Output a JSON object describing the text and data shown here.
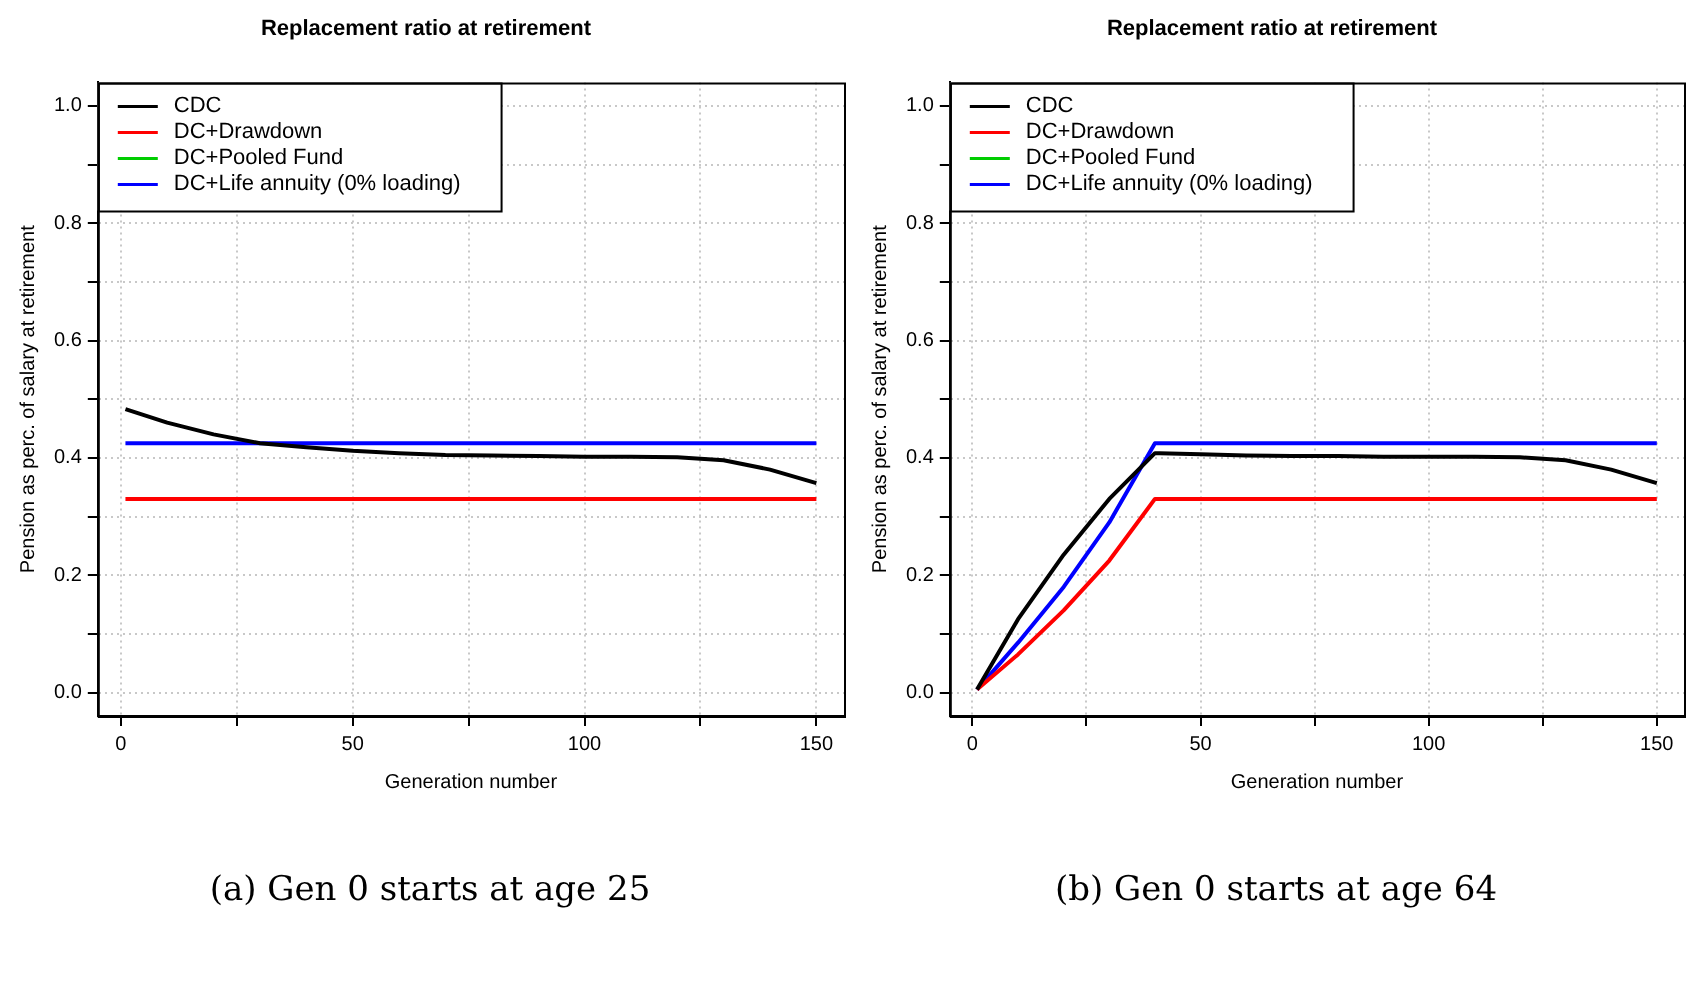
{
  "chart_data": [
    {
      "type": "line",
      "title": "Replacement ratio at retirement",
      "xlabel": "Generation number",
      "ylabel": "Pension as perc. of salary at retirement",
      "xlim": [
        -4.96,
        155.96
      ],
      "xticks": [
        0,
        {
          "value": 25,
          "label": null
        },
        50,
        {
          "value": 75,
          "label": null
        },
        100,
        {
          "value": 125,
          "label": null
        },
        150
      ],
      "ylim": [
        -0.04,
        1.04
      ],
      "yticks": [
        "0.0",
        {
          "value": 0.1,
          "label": null
        },
        0.2,
        {
          "value": 0.3,
          "label": null
        },
        0.4,
        {
          "value": 0.5,
          "label": null
        },
        0.6,
        {
          "value": 0.7,
          "label": null
        },
        0.8,
        {
          "value": 0.9,
          "label": null
        },
        {
          "value": 1,
          "label": "1.0"
        }
      ],
      "grid": true,
      "legend": "top left",
      "marker": "none",
      "line_style": "solid",
      "annotations": [
        "(a) Gen 0 starts at age 25"
      ],
      "series": [
        {
          "name": "CDC",
          "color": "#000000",
          "x": [
            1,
            10,
            20,
            30,
            40,
            50,
            60,
            70,
            80,
            90,
            100,
            110,
            120,
            130,
            140,
            150
          ],
          "values": [
            0.483,
            0.46,
            0.44,
            0.425,
            0.418,
            0.412,
            0.408,
            0.405,
            0.404,
            0.403,
            0.402,
            0.402,
            0.401,
            0.396,
            0.38,
            0.357
          ]
        },
        {
          "name": "DC+Drawdown",
          "color": "#ff0000",
          "x": [
            1,
            150
          ],
          "values": [
            0.33,
            0.33
          ]
        },
        {
          "name": "DC+Pooled Fund",
          "color": "#00cd00"
        },
        {
          "name": "DC+Life annuity (0% loading)",
          "color": "#0000ff",
          "x": [
            1,
            150
          ],
          "values": [
            0.425,
            0.425
          ]
        }
      ]
    },
    {
      "type": "line",
      "title": "Replacement ratio at retirement",
      "xlabel": "Generation number",
      "ylabel": "Pension as perc. of salary at retirement",
      "xlim": [
        -4.96,
        155.96
      ],
      "xticks": [
        0,
        {
          "value": 25,
          "label": null
        },
        50,
        {
          "value": 75,
          "label": null
        },
        100,
        {
          "value": 125,
          "label": null
        },
        150
      ],
      "ylim": [
        -0.04,
        1.04
      ],
      "yticks": [
        {
          "value": 0,
          "label": "0.0"
        },
        {
          "value": 0.1,
          "label": null
        },
        0.2,
        {
          "value": 0.3,
          "label": null
        },
        0.4,
        {
          "value": 0.5,
          "label": null
        },
        0.6,
        {
          "value": 0.7,
          "label": null
        },
        0.8,
        {
          "value": 0.9,
          "label": null
        },
        {
          "value": 1,
          "label": "1.0"
        }
      ],
      "grid": true,
      "legend": "top left",
      "marker": "none",
      "line_style": "solid",
      "annotations": [
        "(b) Gen 0 starts at age 64"
      ],
      "series": [
        {
          "name": "CDC",
          "color": "#000000",
          "x": [
            1,
            10,
            20,
            30,
            40,
            41,
            50,
            60,
            70,
            80,
            90,
            100,
            110,
            120,
            130,
            140,
            150
          ],
          "values": [
            0.005,
            0.125,
            0.235,
            0.33,
            0.408,
            0.408,
            0.406,
            0.404,
            0.403,
            0.403,
            0.402,
            0.402,
            0.402,
            0.401,
            0.396,
            0.38,
            0.357
          ]
        },
        {
          "name": "DC+Drawdown",
          "color": "#ff0000",
          "x": [
            1,
            10,
            20,
            30,
            40,
            150
          ],
          "values": [
            0.005,
            0.065,
            0.14,
            0.225,
            0.33,
            0.33
          ]
        },
        {
          "name": "DC+Pooled Fund",
          "color": "#00cd00"
        },
        {
          "name": "DC+Life annuity (0% loading)",
          "color": "#0000ff",
          "x": [
            1,
            10,
            20,
            30,
            40,
            150
          ],
          "values": [
            0.005,
            0.085,
            0.18,
            0.29,
            0.425,
            0.425
          ]
        }
      ]
    }
  ]
}
